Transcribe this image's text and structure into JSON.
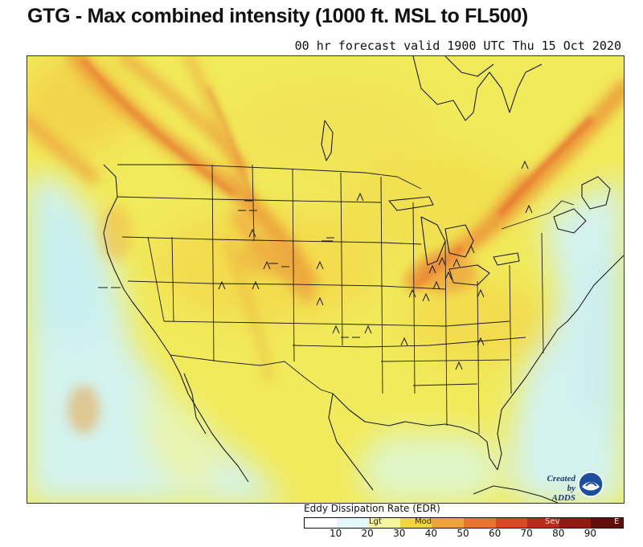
{
  "title": "GTG - Max combined intensity (1000 ft. MSL to FL500)",
  "subtitle": "00 hr forecast valid 1900 UTC Thu 15 Oct 2020",
  "logo": {
    "line1": "Created by",
    "line2": "ADDS",
    "icon": "noaa-logo-icon"
  },
  "legend": {
    "title": "Eddy Dissipation Rate (EDR)",
    "categories": [
      "Lgt",
      "Mod",
      "Sev",
      "E"
    ],
    "ticks": [
      "10",
      "20",
      "30",
      "40",
      "50",
      "60",
      "70",
      "80",
      "90"
    ],
    "colors": [
      "#ffffff",
      "#e4f8fb",
      "#f6f4a0",
      "#f2d53e",
      "#eda43c",
      "#e8742f",
      "#d94825",
      "#b52c1c",
      "#8f1b12",
      "#5e0f0c"
    ]
  },
  "map": {
    "region": "Continental United States",
    "background_color": "#f2ee58",
    "ocean_light_color": "#d8f6ef",
    "hotspot_color": "#e8742f",
    "turbulence_symbols": "moderate-turbulence-icon"
  }
}
